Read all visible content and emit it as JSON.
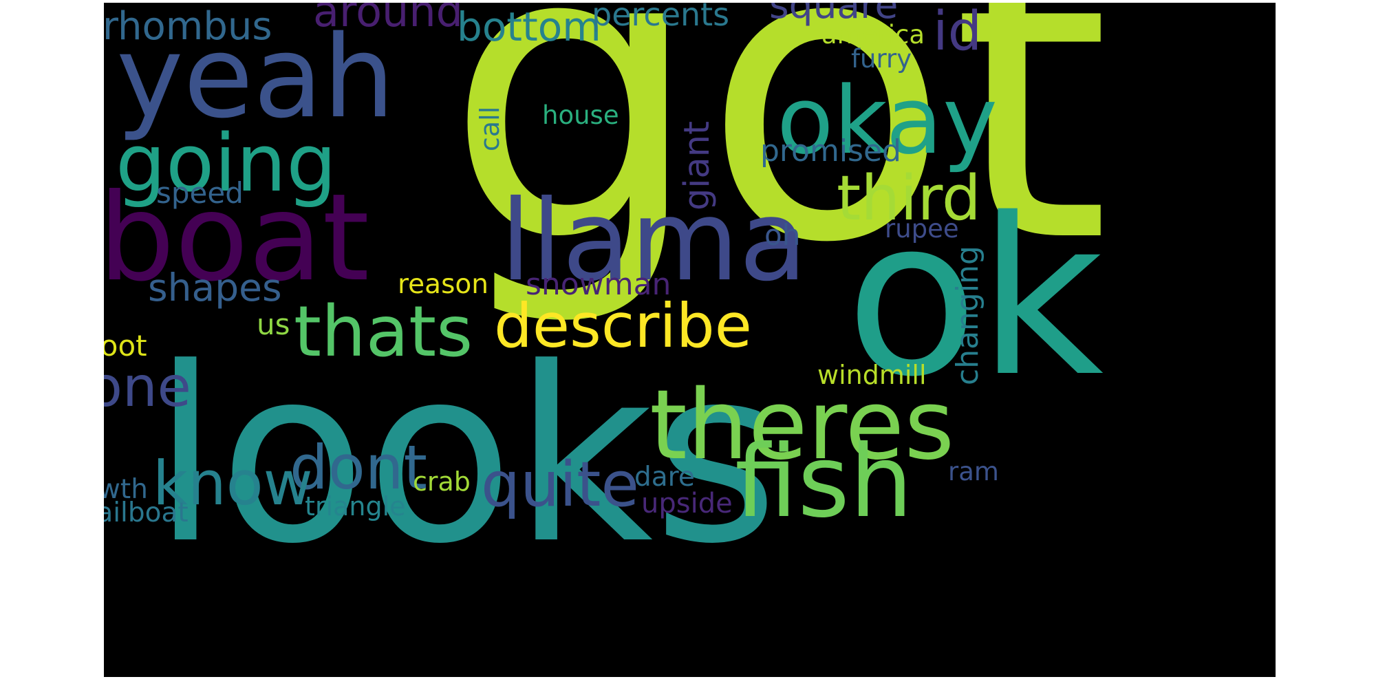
{
  "wordcloud": {
    "words": [
      {
        "text": "got",
        "color": "#b5de2b"
      },
      {
        "text": "looks",
        "color": "#21918c"
      },
      {
        "text": "ok",
        "color": "#1f9e89"
      },
      {
        "text": "yeah",
        "color": "#3b528b"
      },
      {
        "text": "boat",
        "color": "#440154"
      },
      {
        "text": "llama",
        "color": "#3e4989"
      },
      {
        "text": "okay",
        "color": "#1fa188"
      },
      {
        "text": "theres",
        "color": "#7ad151"
      },
      {
        "text": "fish",
        "color": "#6ece58"
      },
      {
        "text": "going",
        "color": "#1fa187"
      },
      {
        "text": "thats",
        "color": "#54c568"
      },
      {
        "text": "describe",
        "color": "#fde725"
      },
      {
        "text": "third",
        "color": "#a5db36"
      },
      {
        "text": "quite",
        "color": "#3b528b"
      },
      {
        "text": "dont",
        "color": "#31688e"
      },
      {
        "text": "know",
        "color": "#26828e"
      },
      {
        "text": "one",
        "color": "#3e4989"
      },
      {
        "text": "shapes",
        "color": "#355f8d"
      },
      {
        "text": "bottom",
        "color": "#26828e"
      },
      {
        "text": "around",
        "color": "#481f70"
      },
      {
        "text": "square",
        "color": "#414487"
      },
      {
        "text": "percents",
        "color": "#2a788e"
      },
      {
        "text": "id",
        "color": "#443983"
      },
      {
        "text": "rhombus",
        "color": "#31688e"
      },
      {
        "text": "america",
        "color": "#b5de2b"
      },
      {
        "text": "furry",
        "color": "#33638d"
      },
      {
        "text": "house",
        "color": "#2ab07f"
      },
      {
        "text": "call",
        "color": "#2a788e"
      },
      {
        "text": "giant",
        "color": "#443a83"
      },
      {
        "text": "promised",
        "color": "#31688e"
      },
      {
        "text": "speed",
        "color": "#33638d"
      },
      {
        "text": "oh",
        "color": "#39568c"
      },
      {
        "text": "rupee",
        "color": "#3e4c8a"
      },
      {
        "text": "changing",
        "color": "#277f8e"
      },
      {
        "text": "reason",
        "color": "#e5e419"
      },
      {
        "text": "snowman",
        "color": "#482475"
      },
      {
        "text": "us",
        "color": "#8fd744"
      },
      {
        "text": "foot",
        "color": "#dde318"
      },
      {
        "text": "windmill",
        "color": "#b8de29"
      },
      {
        "text": "dare",
        "color": "#2e6e8e"
      },
      {
        "text": "crab",
        "color": "#a2da37"
      },
      {
        "text": "wth",
        "color": "#31688e"
      },
      {
        "text": "ram",
        "color": "#3b528b"
      },
      {
        "text": "upside",
        "color": "#482878"
      },
      {
        "text": "triangle",
        "color": "#25858e"
      },
      {
        "text": "sailboat",
        "color": "#2a778e"
      }
    ]
  }
}
